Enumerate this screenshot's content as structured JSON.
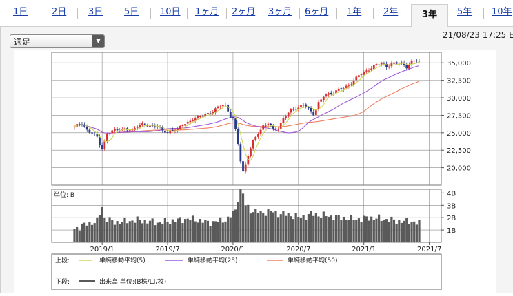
{
  "tabs": [
    {
      "label": "1日",
      "active": false
    },
    {
      "label": "2日",
      "active": false
    },
    {
      "label": "3日",
      "active": false
    },
    {
      "label": "5日",
      "active": false
    },
    {
      "label": "10日",
      "active": false
    },
    {
      "label": "1ヶ月",
      "active": false
    },
    {
      "label": "2ヶ月",
      "active": false
    },
    {
      "label": "3ヶ月",
      "active": false
    },
    {
      "label": "6ヶ月",
      "active": false
    },
    {
      "label": "1年",
      "active": false
    },
    {
      "label": "2年",
      "active": false
    },
    {
      "label": "3年",
      "active": true
    },
    {
      "label": "5年",
      "active": false
    },
    {
      "label": "10年",
      "active": false
    }
  ],
  "period_select": {
    "value": "週足"
  },
  "timestamp": "21/08/23 17:25 E",
  "legend": {
    "upper_label": "上段:",
    "lower_label": "下段:",
    "items": [
      {
        "name": "単純移動平均(5)",
        "color": "#cfd65a"
      },
      {
        "name": "単純移動平均(25)",
        "color": "#a05ad6"
      },
      {
        "name": "単純移動平均(50)",
        "color": "#f08060"
      }
    ],
    "volume_item": "出来高 単位:(B株/口/枚)"
  },
  "colors": {
    "up": "#d83030",
    "down": "#2a3a88",
    "volume": "#5a5a5a",
    "grid": "#8a8a8a"
  },
  "chart_data": {
    "type": "candlestick",
    "x_tick_labels": [
      "2019/1",
      "2019/7",
      "2020/1",
      "2020/7",
      "2021/1",
      "2021/7"
    ],
    "x_tick_weeks": [
      11,
      37,
      63,
      89,
      115,
      141
    ],
    "price": {
      "ylim": [
        17500,
        36500
      ],
      "ticks": [
        20000,
        22500,
        25000,
        27500,
        30000,
        32500,
        35000
      ],
      "tick_labels": [
        "20,000",
        "22,500",
        "25,000",
        "27,500",
        "30,000",
        "32,500",
        "35,000"
      ]
    },
    "volume": {
      "unit_label": "単位: B",
      "ylim": [
        0,
        4.3
      ],
      "ticks": [
        1,
        2,
        3,
        4
      ],
      "tick_labels": [
        "1B",
        "2B",
        "3B",
        "4B"
      ]
    },
    "close_anchors": [
      [
        0,
        25900
      ],
      [
        3,
        26300
      ],
      [
        5,
        25400
      ],
      [
        7,
        25000
      ],
      [
        9,
        24300
      ],
      [
        10,
        23300
      ],
      [
        11,
        22700
      ],
      [
        12,
        23700
      ],
      [
        13,
        24900
      ],
      [
        15,
        25200
      ],
      [
        17,
        25400
      ],
      [
        20,
        25600
      ],
      [
        23,
        25200
      ],
      [
        25,
        26000
      ],
      [
        27,
        26300
      ],
      [
        30,
        25800
      ],
      [
        33,
        26100
      ],
      [
        35,
        25300
      ],
      [
        37,
        24900
      ],
      [
        39,
        25400
      ],
      [
        41,
        25600
      ],
      [
        43,
        26100
      ],
      [
        45,
        26400
      ],
      [
        47,
        27000
      ],
      [
        50,
        27300
      ],
      [
        52,
        27600
      ],
      [
        55,
        28100
      ],
      [
        57,
        28600
      ],
      [
        59,
        29000
      ],
      [
        60,
        28900
      ],
      [
        62,
        27400
      ],
      [
        63,
        27000
      ],
      [
        64,
        25300
      ],
      [
        65,
        23400
      ],
      [
        66,
        21000
      ],
      [
        67,
        19400
      ],
      [
        68,
        20500
      ],
      [
        69,
        21900
      ],
      [
        70,
        22800
      ],
      [
        71,
        23700
      ],
      [
        73,
        24900
      ],
      [
        75,
        26000
      ],
      [
        77,
        26400
      ],
      [
        79,
        25400
      ],
      [
        81,
        25700
      ],
      [
        83,
        27100
      ],
      [
        85,
        27800
      ],
      [
        87,
        28400
      ],
      [
        89,
        28600
      ],
      [
        91,
        29100
      ],
      [
        93,
        28300
      ],
      [
        95,
        27700
      ],
      [
        97,
        29300
      ],
      [
        99,
        30200
      ],
      [
        101,
        30500
      ],
      [
        103,
        30800
      ],
      [
        105,
        31200
      ],
      [
        107,
        31300
      ],
      [
        109,
        31800
      ],
      [
        111,
        32500
      ],
      [
        113,
        33200
      ],
      [
        115,
        33600
      ],
      [
        117,
        34100
      ],
      [
        118,
        34300
      ],
      [
        120,
        34700
      ],
      [
        122,
        34900
      ],
      [
        124,
        34500
      ],
      [
        126,
        34800
      ],
      [
        128,
        34900
      ],
      [
        130,
        35000
      ],
      [
        132,
        34400
      ],
      [
        134,
        35100
      ],
      [
        136,
        35400
      ],
      [
        137,
        35300
      ]
    ],
    "volume_anchors": [
      [
        0,
        1.1
      ],
      [
        5,
        1.5
      ],
      [
        9,
        1.7
      ],
      [
        11,
        2.9
      ],
      [
        12,
        2.0
      ],
      [
        16,
        1.6
      ],
      [
        20,
        1.7
      ],
      [
        25,
        1.8
      ],
      [
        29,
        1.7
      ],
      [
        33,
        1.6
      ],
      [
        37,
        1.7
      ],
      [
        41,
        1.8
      ],
      [
        45,
        1.9
      ],
      [
        49,
        1.8
      ],
      [
        53,
        1.6
      ],
      [
        57,
        1.7
      ],
      [
        61,
        1.9
      ],
      [
        64,
        2.6
      ],
      [
        65,
        3.6
      ],
      [
        66,
        4.2
      ],
      [
        67,
        3.9
      ],
      [
        68,
        3.0
      ],
      [
        70,
        2.6
      ],
      [
        74,
        2.4
      ],
      [
        78,
        2.5
      ],
      [
        82,
        2.3
      ],
      [
        86,
        2.2
      ],
      [
        90,
        2.0
      ],
      [
        94,
        2.3
      ],
      [
        98,
        2.2
      ],
      [
        102,
        2.1
      ],
      [
        106,
        2.0
      ],
      [
        110,
        1.9
      ],
      [
        114,
        1.9
      ],
      [
        118,
        2.0
      ],
      [
        122,
        1.9
      ],
      [
        126,
        1.8
      ],
      [
        130,
        1.7
      ],
      [
        134,
        1.7
      ],
      [
        137,
        1.5
      ]
    ]
  }
}
